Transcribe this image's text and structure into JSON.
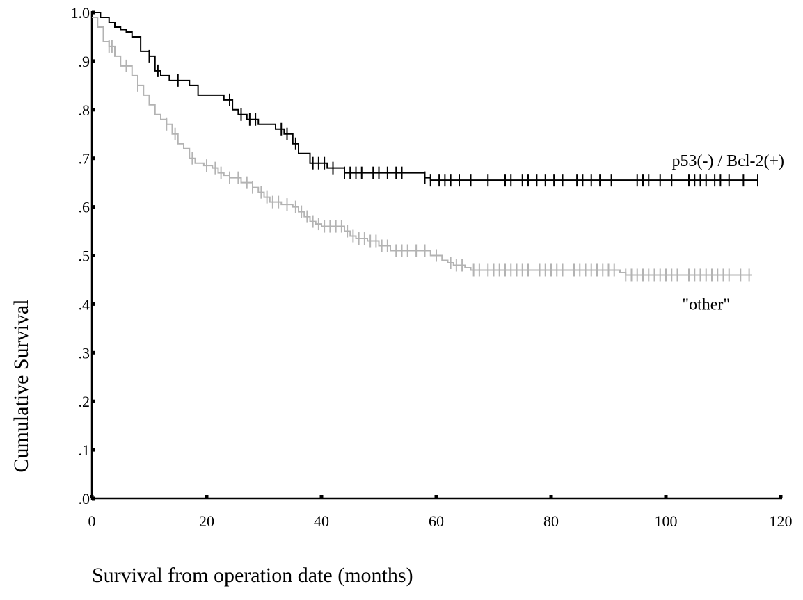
{
  "chart_data": {
    "type": "line",
    "subtype": "kaplan-meier step survival curves",
    "title": "",
    "xlabel": "Survival from operation date (months)",
    "ylabel": "Cumulative Survival",
    "xlim": [
      0,
      120
    ],
    "ylim": [
      0,
      1.0
    ],
    "x_ticks": [
      0,
      20,
      40,
      60,
      80,
      100,
      120
    ],
    "x_tick_labels": [
      "0",
      "20",
      "40",
      "60",
      "80",
      "100",
      "120"
    ],
    "y_ticks": [
      0,
      0.1,
      0.2,
      0.3,
      0.4,
      0.5,
      0.6,
      0.7,
      0.8,
      0.9,
      1.0
    ],
    "y_tick_labels": [
      ".0",
      ".1",
      ".2",
      ".3",
      ".4",
      ".5",
      ".6",
      ".7",
      ".8",
      ".9",
      "1.0"
    ],
    "grid": false,
    "legend": "none",
    "series": [
      {
        "name": "p53(-) / Bcl-2(+)",
        "color": "#000000",
        "steps": [
          [
            0,
            1.0
          ],
          [
            1.5,
            0.99
          ],
          [
            3,
            0.98
          ],
          [
            4,
            0.97
          ],
          [
            5,
            0.965
          ],
          [
            6,
            0.96
          ],
          [
            7,
            0.95
          ],
          [
            8.5,
            0.92
          ],
          [
            10,
            0.91
          ],
          [
            11,
            0.88
          ],
          [
            12,
            0.87
          ],
          [
            13.5,
            0.86
          ],
          [
            17,
            0.85
          ],
          [
            18.5,
            0.83
          ],
          [
            23,
            0.82
          ],
          [
            24.5,
            0.8
          ],
          [
            25.5,
            0.79
          ],
          [
            27,
            0.78
          ],
          [
            29,
            0.77
          ],
          [
            32,
            0.76
          ],
          [
            33.5,
            0.75
          ],
          [
            35,
            0.73
          ],
          [
            36,
            0.71
          ],
          [
            38,
            0.69
          ],
          [
            40,
            0.69
          ],
          [
            41,
            0.68
          ],
          [
            44,
            0.67
          ],
          [
            58,
            0.66
          ],
          [
            59,
            0.655
          ],
          [
            116,
            0.655
          ]
        ],
        "censored": [
          10,
          11.5,
          15,
          24,
          26,
          27.5,
          28.5,
          33,
          34,
          35.5,
          38.5,
          39.5,
          40.5,
          42,
          44,
          45,
          46,
          47,
          49,
          50,
          51.5,
          53,
          54,
          58,
          59,
          60.5,
          61.5,
          62.5,
          64,
          66,
          69,
          72,
          73,
          75,
          76,
          77.5,
          79,
          80.5,
          82,
          84.5,
          85.5,
          87,
          88.5,
          90.5,
          95,
          96,
          97,
          99,
          101,
          104,
          105,
          106,
          107,
          108.5,
          109.5,
          111,
          113.5,
          116
        ]
      },
      {
        "name": "\"other\"",
        "color": "#b3b3b3",
        "steps": [
          [
            0,
            0.99
          ],
          [
            1,
            0.97
          ],
          [
            2,
            0.94
          ],
          [
            3,
            0.93
          ],
          [
            4,
            0.91
          ],
          [
            5,
            0.89
          ],
          [
            7,
            0.87
          ],
          [
            8,
            0.85
          ],
          [
            9,
            0.83
          ],
          [
            10,
            0.81
          ],
          [
            11,
            0.79
          ],
          [
            12,
            0.78
          ],
          [
            13,
            0.77
          ],
          [
            14,
            0.75
          ],
          [
            15,
            0.73
          ],
          [
            16,
            0.72
          ],
          [
            17,
            0.7
          ],
          [
            18,
            0.69
          ],
          [
            19.5,
            0.685
          ],
          [
            21,
            0.68
          ],
          [
            22,
            0.67
          ],
          [
            23,
            0.665
          ],
          [
            24,
            0.66
          ],
          [
            26,
            0.65
          ],
          [
            28,
            0.64
          ],
          [
            29,
            0.63
          ],
          [
            30,
            0.62
          ],
          [
            31,
            0.61
          ],
          [
            33,
            0.605
          ],
          [
            35,
            0.6
          ],
          [
            36,
            0.59
          ],
          [
            37,
            0.58
          ],
          [
            38,
            0.57
          ],
          [
            39,
            0.565
          ],
          [
            40,
            0.56
          ],
          [
            44,
            0.55
          ],
          [
            45,
            0.54
          ],
          [
            46,
            0.535
          ],
          [
            48,
            0.53
          ],
          [
            50,
            0.52
          ],
          [
            52,
            0.51
          ],
          [
            55,
            0.51
          ],
          [
            59,
            0.5
          ],
          [
            61,
            0.49
          ],
          [
            62,
            0.485
          ],
          [
            63,
            0.48
          ],
          [
            65,
            0.475
          ],
          [
            66,
            0.47
          ],
          [
            92,
            0.465
          ],
          [
            93,
            0.46
          ],
          [
            115,
            0.46
          ]
        ],
        "censored": [
          3,
          3.5,
          6,
          8,
          13,
          14.5,
          17.5,
          20,
          21.5,
          22.5,
          24,
          25.5,
          27,
          28,
          29.5,
          30.5,
          31.5,
          32.5,
          34,
          35.5,
          36.5,
          37.5,
          38.5,
          39.5,
          40.5,
          41.5,
          42.5,
          43.5,
          44.5,
          45.5,
          46.5,
          47.5,
          48.5,
          49.5,
          50.5,
          51.5,
          53,
          54,
          55,
          56.5,
          58,
          60,
          62.5,
          63.5,
          64.5,
          66.5,
          67.5,
          69,
          70,
          71,
          72,
          73,
          74,
          75,
          76,
          78,
          79,
          80,
          81,
          82,
          84,
          85,
          86,
          87,
          88,
          89,
          90,
          91,
          93,
          94,
          95,
          96,
          97,
          98,
          99,
          100,
          101,
          102,
          104,
          105,
          106,
          107,
          108,
          109,
          110,
          111,
          113,
          114.5
        ]
      }
    ],
    "annotations": [
      {
        "text": "p53(-) / Bcl-2(+)",
        "anchor_series": "p53(-) / Bcl-2(+)"
      },
      {
        "text": "\"other\"",
        "anchor_series": "\"other\""
      }
    ]
  }
}
